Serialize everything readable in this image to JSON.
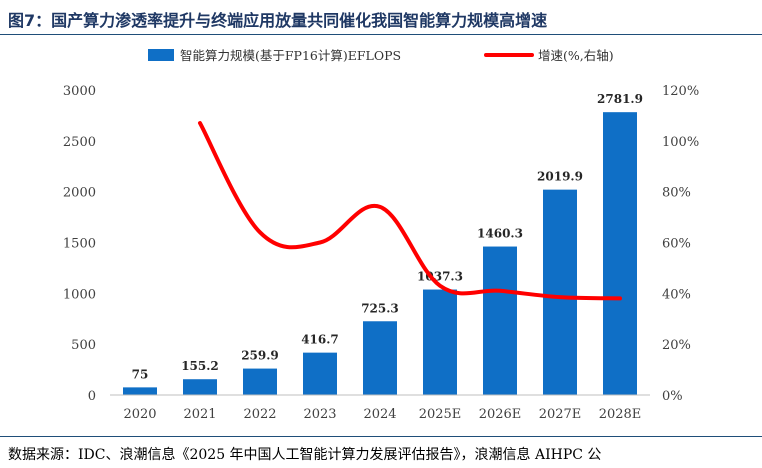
{
  "title": "图7：国产算力渗透率提升与终端应用放量共同催化我国智能算力规模高增速",
  "source": "数据来源：IDC、浪潮信息《2025 年中国人工智能计算力发展评估报告》，浪潮信息 AIHPC 公",
  "colors": {
    "bar": "#0f6fc6",
    "line": "#ff0000",
    "rule": "#1f4e79",
    "title": "#1f3864"
  },
  "chart_data": {
    "type": "bar",
    "categories": [
      "2020",
      "2021",
      "2022",
      "2023",
      "2024",
      "2025E",
      "2026E",
      "2027E",
      "2028E"
    ],
    "series": [
      {
        "name": "智能算力规模(基于FP16计算)EFLOPS",
        "type": "bar",
        "axis": "left",
        "values": [
          75,
          155.2,
          259.9,
          416.7,
          725.3,
          1037.3,
          1460.3,
          2019.9,
          2781.9
        ],
        "labels": [
          "75",
          "155.2",
          "259.9",
          "416.7",
          "725.3",
          "1037.3",
          "1460.3",
          "2019.9",
          "2781.9"
        ]
      },
      {
        "name": "增速(%,右轴)",
        "type": "line",
        "axis": "right",
        "values": [
          null,
          107,
          64,
          60,
          74,
          43,
          41,
          38.5,
          38
        ]
      }
    ],
    "y_left": {
      "range": [
        0,
        3000
      ],
      "ticks": [
        "0",
        "500",
        "1000",
        "1500",
        "2000",
        "2500",
        "3000"
      ],
      "tick_values": [
        0,
        500,
        1000,
        1500,
        2000,
        2500,
        3000
      ]
    },
    "y_right": {
      "range": [
        0,
        120
      ],
      "ticks": [
        "0%",
        "20%",
        "40%",
        "60%",
        "80%",
        "100%",
        "120%"
      ],
      "tick_values": [
        0,
        20,
        40,
        60,
        80,
        100,
        120
      ]
    },
    "legend_position": "top-center",
    "grid": false
  }
}
